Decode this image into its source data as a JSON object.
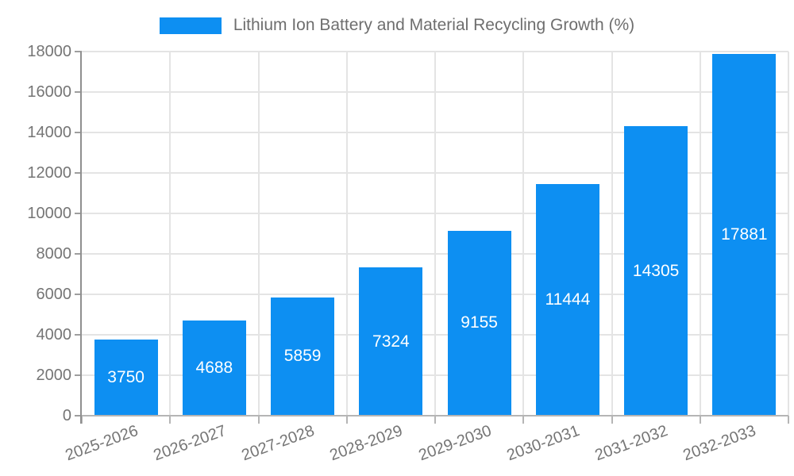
{
  "chart_data": {
    "type": "bar",
    "title": "Lithium Ion Battery and Material Recycling Growth (%)",
    "categories": [
      "2025-2026",
      "2026-2027",
      "2027-2028",
      "2028-2029",
      "2029-2030",
      "2030-2031",
      "2031-2032",
      "2032-2033"
    ],
    "values": [
      3750,
      4688,
      5859,
      7324,
      9155,
      11444,
      14305,
      17881
    ],
    "bar_labels": [
      "3750",
      "4688",
      "5859",
      "7324",
      "9155",
      "11444",
      "14305",
      "17881"
    ],
    "xlabel": "",
    "ylabel": "",
    "ylim": [
      0,
      18000
    ],
    "ytick_step": 2000,
    "yticks": [
      0,
      2000,
      4000,
      6000,
      8000,
      10000,
      12000,
      14000,
      16000,
      18000
    ],
    "grid": true,
    "legend_position": "top",
    "bar_color": "#0d8ff2",
    "bar_label_color": "#ffffff",
    "axis_text_color": "#757575"
  }
}
